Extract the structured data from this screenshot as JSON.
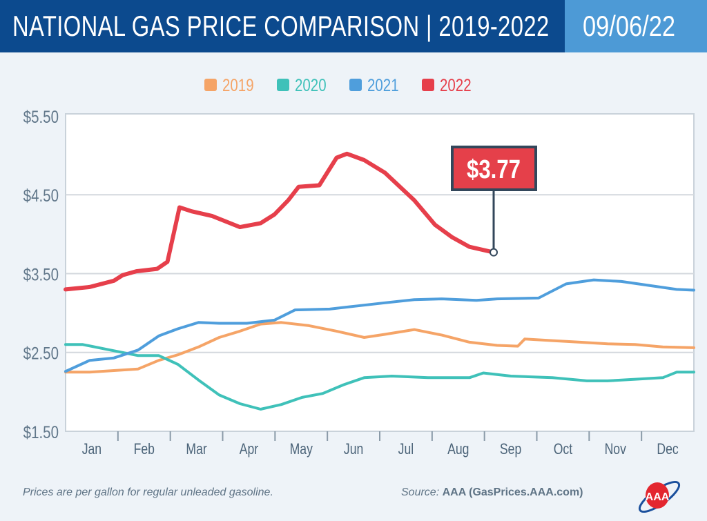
{
  "header": {
    "title": "NATIONAL GAS PRICE COMPARISON | 2019-2022",
    "date": "09/06/22"
  },
  "footer": {
    "note": "Prices are per gallon for regular unleaded gasoline.",
    "source_label": "Source:",
    "source": "AAA (GasPrices.AAA.com)",
    "logo_text": "AAA"
  },
  "chart_data": {
    "type": "line",
    "title": "",
    "xlabel": "",
    "ylabel": "",
    "ylim": [
      1.5,
      5.5
    ],
    "yticks": [
      "$1.50",
      "$2.50",
      "$3.50",
      "$4.50",
      "$5.50"
    ],
    "ytick_values": [
      1.5,
      2.5,
      3.5,
      4.5,
      5.5
    ],
    "categories": [
      "Jan",
      "Feb",
      "Mar",
      "Apr",
      "May",
      "Jun",
      "Jul",
      "Aug",
      "Sep",
      "Oct",
      "Nov",
      "Dec"
    ],
    "grid": true,
    "legend": "top-center",
    "callout": {
      "label": "$3.77",
      "date": "09-06",
      "value": 3.77
    },
    "series": [
      {
        "name": "2019",
        "color": "#f5a467",
        "points": [
          [
            "01-01",
            2.25
          ],
          [
            "01-15",
            2.25
          ],
          [
            "01-29",
            2.27
          ],
          [
            "02-12",
            2.29
          ],
          [
            "02-24",
            2.4
          ],
          [
            "03-07",
            2.47
          ],
          [
            "03-19",
            2.57
          ],
          [
            "03-31",
            2.69
          ],
          [
            "04-12",
            2.77
          ],
          [
            "04-24",
            2.86
          ],
          [
            "05-06",
            2.88
          ],
          [
            "05-22",
            2.84
          ],
          [
            "06-07",
            2.77
          ],
          [
            "06-23",
            2.69
          ],
          [
            "07-05",
            2.73
          ],
          [
            "07-22",
            2.79
          ],
          [
            "08-07",
            2.72
          ],
          [
            "08-23",
            2.63
          ],
          [
            "09-08",
            2.59
          ],
          [
            "09-20",
            2.58
          ],
          [
            "09-24",
            2.67
          ],
          [
            "10-10",
            2.65
          ],
          [
            "10-26",
            2.63
          ],
          [
            "11-11",
            2.61
          ],
          [
            "11-27",
            2.6
          ],
          [
            "12-13",
            2.57
          ],
          [
            "12-31",
            2.56
          ]
        ]
      },
      {
        "name": "2020",
        "color": "#3fc1b9",
        "points": [
          [
            "01-01",
            2.6
          ],
          [
            "01-11",
            2.6
          ],
          [
            "01-27",
            2.53
          ],
          [
            "02-12",
            2.46
          ],
          [
            "02-24",
            2.46
          ],
          [
            "03-07",
            2.35
          ],
          [
            "03-19",
            2.15
          ],
          [
            "03-31",
            1.96
          ],
          [
            "04-12",
            1.85
          ],
          [
            "04-24",
            1.78
          ],
          [
            "05-06",
            1.84
          ],
          [
            "05-18",
            1.93
          ],
          [
            "05-30",
            1.98
          ],
          [
            "06-11",
            2.09
          ],
          [
            "06-23",
            2.18
          ],
          [
            "07-09",
            2.2
          ],
          [
            "07-30",
            2.18
          ],
          [
            "08-23",
            2.18
          ],
          [
            "08-31",
            2.24
          ],
          [
            "09-16",
            2.2
          ],
          [
            "10-10",
            2.18
          ],
          [
            "10-30",
            2.14
          ],
          [
            "11-11",
            2.14
          ],
          [
            "11-27",
            2.16
          ],
          [
            "12-13",
            2.18
          ],
          [
            "12-21",
            2.25
          ],
          [
            "12-31",
            2.25
          ]
        ]
      },
      {
        "name": "2021",
        "color": "#4f9edc",
        "points": [
          [
            "01-01",
            2.26
          ],
          [
            "01-15",
            2.4
          ],
          [
            "01-29",
            2.43
          ],
          [
            "02-12",
            2.53
          ],
          [
            "02-24",
            2.71
          ],
          [
            "03-07",
            2.8
          ],
          [
            "03-19",
            2.88
          ],
          [
            "03-31",
            2.87
          ],
          [
            "04-16",
            2.87
          ],
          [
            "05-02",
            2.91
          ],
          [
            "05-14",
            3.04
          ],
          [
            "06-03",
            3.05
          ],
          [
            "06-19",
            3.09
          ],
          [
            "07-05",
            3.13
          ],
          [
            "07-22",
            3.17
          ],
          [
            "08-07",
            3.18
          ],
          [
            "08-27",
            3.16
          ],
          [
            "09-08",
            3.18
          ],
          [
            "10-02",
            3.19
          ],
          [
            "10-18",
            3.37
          ],
          [
            "11-03",
            3.42
          ],
          [
            "11-19",
            3.4
          ],
          [
            "12-05",
            3.35
          ],
          [
            "12-21",
            3.3
          ],
          [
            "12-31",
            3.29
          ]
        ]
      },
      {
        "name": "2022",
        "color": "#e63f4b",
        "points": [
          [
            "01-01",
            3.3
          ],
          [
            "01-15",
            3.33
          ],
          [
            "01-29",
            3.41
          ],
          [
            "02-03",
            3.48
          ],
          [
            "02-11",
            3.53
          ],
          [
            "02-23",
            3.56
          ],
          [
            "03-01",
            3.65
          ],
          [
            "03-08",
            4.34
          ],
          [
            "03-15",
            4.29
          ],
          [
            "03-27",
            4.23
          ],
          [
            "04-12",
            4.09
          ],
          [
            "04-24",
            4.14
          ],
          [
            "05-02",
            4.25
          ],
          [
            "05-10",
            4.43
          ],
          [
            "05-16",
            4.6
          ],
          [
            "05-28",
            4.62
          ],
          [
            "06-07",
            4.97
          ],
          [
            "06-13",
            5.02
          ],
          [
            "06-23",
            4.94
          ],
          [
            "07-05",
            4.78
          ],
          [
            "07-22",
            4.43
          ],
          [
            "08-03",
            4.12
          ],
          [
            "08-13",
            3.96
          ],
          [
            "08-23",
            3.84
          ],
          [
            "09-06",
            3.77
          ]
        ]
      }
    ]
  }
}
